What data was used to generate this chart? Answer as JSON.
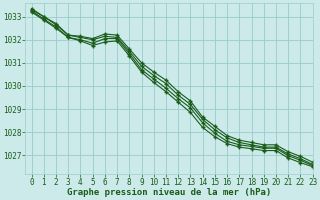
{
  "title": "Graphe pression niveau de la mer (hPa)",
  "bg_color": "#cceaea",
  "grid_color": "#99cccc",
  "line_color": "#1a5c1a",
  "xlim": [
    -0.5,
    23
  ],
  "ylim": [
    1026.2,
    1033.6
  ],
  "yticks": [
    1027,
    1028,
    1029,
    1030,
    1031,
    1032,
    1033
  ],
  "xticks": [
    0,
    1,
    2,
    3,
    4,
    5,
    6,
    7,
    8,
    9,
    10,
    11,
    12,
    13,
    14,
    15,
    16,
    17,
    18,
    19,
    20,
    21,
    22,
    23
  ],
  "lines": [
    [
      1033.35,
      1033.0,
      1032.7,
      1032.2,
      1032.15,
      1032.05,
      1032.25,
      1032.2,
      1031.6,
      1031.0,
      1030.6,
      1030.25,
      1029.75,
      1029.35,
      1028.65,
      1028.25,
      1027.85,
      1027.65,
      1027.55,
      1027.45,
      1027.45,
      1027.15,
      1026.95,
      1026.7
    ],
    [
      1033.3,
      1033.0,
      1032.65,
      1032.2,
      1032.1,
      1032.0,
      1032.15,
      1032.1,
      1031.5,
      1030.85,
      1030.45,
      1030.1,
      1029.6,
      1029.2,
      1028.55,
      1028.1,
      1027.75,
      1027.55,
      1027.45,
      1027.35,
      1027.35,
      1027.05,
      1026.85,
      1026.6
    ],
    [
      1033.25,
      1032.9,
      1032.55,
      1032.1,
      1032.0,
      1031.85,
      1032.05,
      1032.05,
      1031.4,
      1030.7,
      1030.3,
      1029.9,
      1029.45,
      1029.05,
      1028.4,
      1027.95,
      1027.6,
      1027.45,
      1027.38,
      1027.3,
      1027.3,
      1026.98,
      1026.78,
      1026.55
    ],
    [
      1033.2,
      1032.85,
      1032.5,
      1032.1,
      1031.95,
      1031.75,
      1031.9,
      1031.95,
      1031.3,
      1030.6,
      1030.15,
      1029.75,
      1029.3,
      1028.85,
      1028.2,
      1027.8,
      1027.5,
      1027.35,
      1027.28,
      1027.2,
      1027.2,
      1026.88,
      1026.68,
      1026.5
    ]
  ],
  "marker": "+",
  "marker_size": 3.5,
  "marker_edge_width": 1.0,
  "line_width": 0.8,
  "tick_fontsize": 5.5,
  "label_fontsize": 6.5
}
